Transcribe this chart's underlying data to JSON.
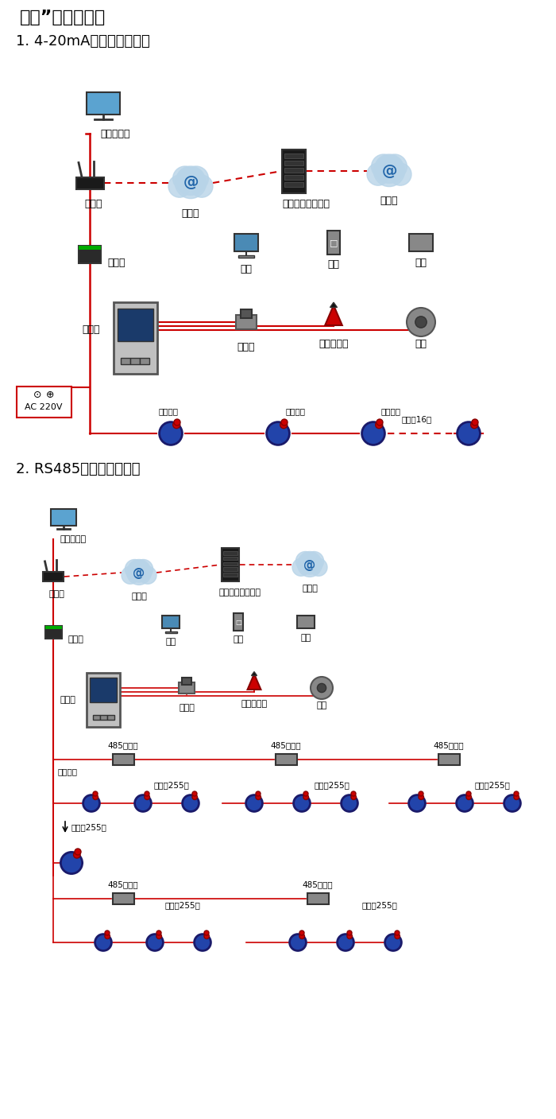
{
  "title1": "大众”系列报警器",
  "subtitle1": "1. 4-20mA信号连接系统图",
  "subtitle2": "2. RS485信号连接系统图",
  "bg_color": "#ffffff",
  "text_color": "#000000",
  "line_color_red": "#cc0000",
  "line_color_dashed": "#cc0000",
  "section1_labels": {
    "computer": "单机版电脑",
    "router": "路由器",
    "internet1": "互联网",
    "server": "安帕尔网络服务器",
    "internet2": "互联网",
    "converter": "转换器",
    "pc": "电脑",
    "phone": "手机",
    "terminal": "终端",
    "comm_line": "通讯线",
    "solenoid": "电磁阀",
    "alarm": "声光报警器",
    "fan": "风机",
    "ac": "AC 220V",
    "signal_out1": "信号输出",
    "signal_out2": "信号输出",
    "signal_out3": "信号输出",
    "connect16": "可连接16个"
  },
  "section2_labels": {
    "computer": "单机版电脑",
    "router": "路由器",
    "internet1": "互联网",
    "server": "安帕尔网络服务器",
    "internet2": "互联网",
    "converter": "转换器",
    "pc": "电脑",
    "phone": "手机",
    "terminal": "终端",
    "comm_line": "通讯线",
    "solenoid": "电磁阀",
    "alarm": "声光报警器",
    "fan": "风机",
    "repeater485": "485中继器",
    "signal_out": "信号输出",
    "connect255": "可连接255台",
    "connect255b": "可连接255台",
    "connect255c": "可连接255台",
    "connect255d": "可连接255台"
  },
  "figsize": [
    7.0,
    14.07
  ],
  "dpi": 100
}
